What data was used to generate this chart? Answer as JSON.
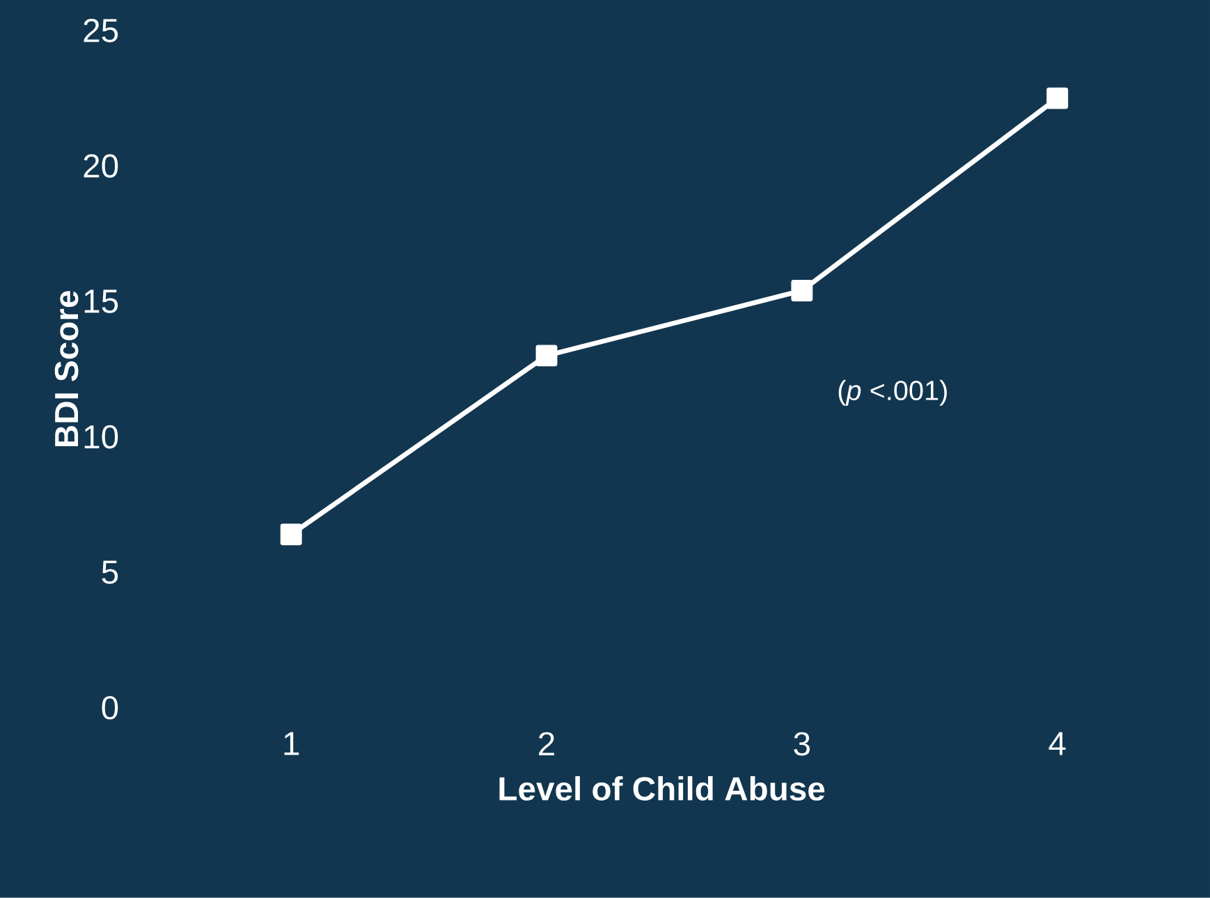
{
  "chart_data": {
    "type": "line",
    "xlabel": "Level of Child Abuse",
    "ylabel": "BDI Score",
    "categories": [
      "1",
      "2",
      "3",
      "4"
    ],
    "series": [
      {
        "color": "#ffffff",
        "values": [
          6.4,
          13.0,
          15.4,
          22.5
        ]
      }
    ],
    "ylim": [
      0,
      25
    ],
    "yticks": [
      0,
      5,
      10,
      15,
      20,
      25
    ],
    "marker": "square",
    "annotations": [
      "(*p* <.001)"
    ]
  }
}
